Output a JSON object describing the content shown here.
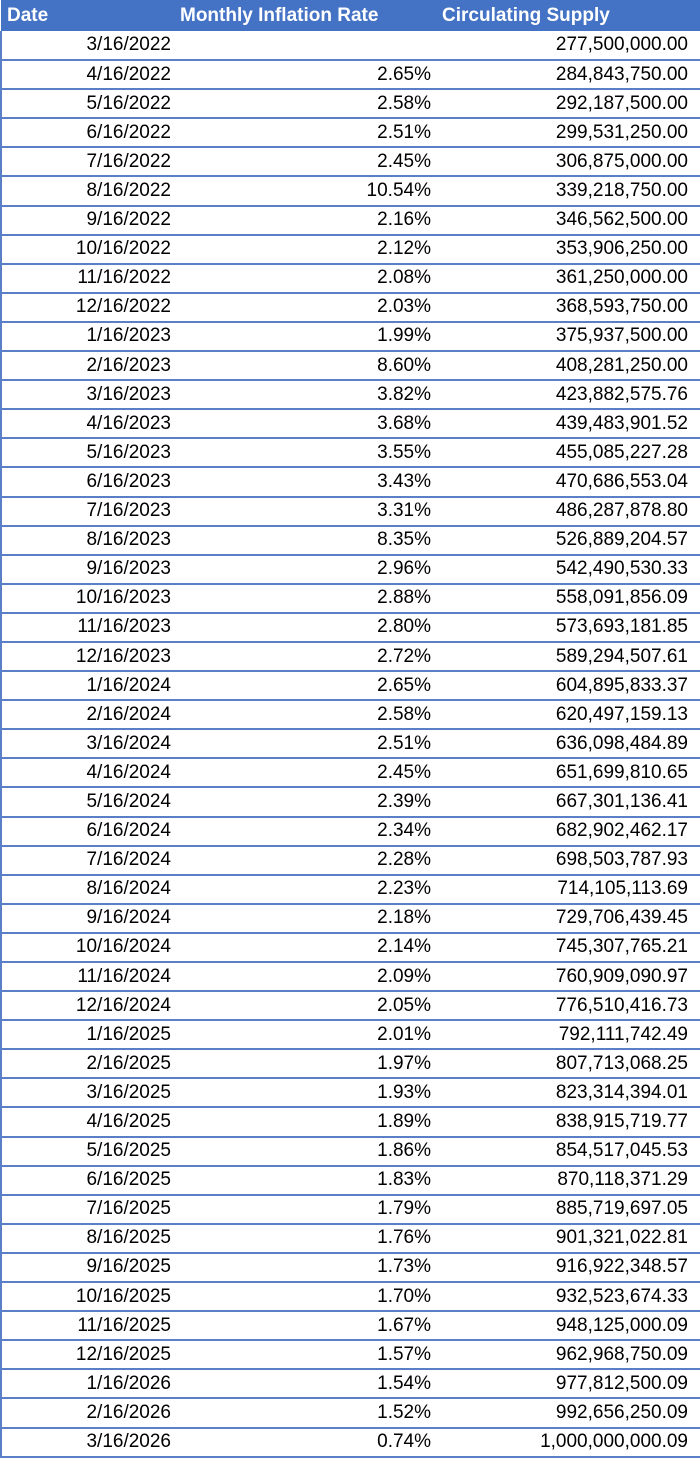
{
  "table": {
    "headers": {
      "date": "Date",
      "rate": "Monthly Inflation Rate",
      "supply": "Circulating Supply"
    },
    "rows": [
      {
        "date": "3/16/2022",
        "rate": "",
        "supply": "277,500,000.00"
      },
      {
        "date": "4/16/2022",
        "rate": "2.65%",
        "supply": "284,843,750.00"
      },
      {
        "date": "5/16/2022",
        "rate": "2.58%",
        "supply": "292,187,500.00"
      },
      {
        "date": "6/16/2022",
        "rate": "2.51%",
        "supply": "299,531,250.00"
      },
      {
        "date": "7/16/2022",
        "rate": "2.45%",
        "supply": "306,875,000.00"
      },
      {
        "date": "8/16/2022",
        "rate": "10.54%",
        "supply": "339,218,750.00"
      },
      {
        "date": "9/16/2022",
        "rate": "2.16%",
        "supply": "346,562,500.00"
      },
      {
        "date": "10/16/2022",
        "rate": "2.12%",
        "supply": "353,906,250.00"
      },
      {
        "date": "11/16/2022",
        "rate": "2.08%",
        "supply": "361,250,000.00"
      },
      {
        "date": "12/16/2022",
        "rate": "2.03%",
        "supply": "368,593,750.00"
      },
      {
        "date": "1/16/2023",
        "rate": "1.99%",
        "supply": "375,937,500.00"
      },
      {
        "date": "2/16/2023",
        "rate": "8.60%",
        "supply": "408,281,250.00"
      },
      {
        "date": "3/16/2023",
        "rate": "3.82%",
        "supply": "423,882,575.76"
      },
      {
        "date": "4/16/2023",
        "rate": "3.68%",
        "supply": "439,483,901.52"
      },
      {
        "date": "5/16/2023",
        "rate": "3.55%",
        "supply": "455,085,227.28"
      },
      {
        "date": "6/16/2023",
        "rate": "3.43%",
        "supply": "470,686,553.04"
      },
      {
        "date": "7/16/2023",
        "rate": "3.31%",
        "supply": "486,287,878.80"
      },
      {
        "date": "8/16/2023",
        "rate": "8.35%",
        "supply": "526,889,204.57"
      },
      {
        "date": "9/16/2023",
        "rate": "2.96%",
        "supply": "542,490,530.33"
      },
      {
        "date": "10/16/2023",
        "rate": "2.88%",
        "supply": "558,091,856.09"
      },
      {
        "date": "11/16/2023",
        "rate": "2.80%",
        "supply": "573,693,181.85"
      },
      {
        "date": "12/16/2023",
        "rate": "2.72%",
        "supply": "589,294,507.61"
      },
      {
        "date": "1/16/2024",
        "rate": "2.65%",
        "supply": "604,895,833.37"
      },
      {
        "date": "2/16/2024",
        "rate": "2.58%",
        "supply": "620,497,159.13"
      },
      {
        "date": "3/16/2024",
        "rate": "2.51%",
        "supply": "636,098,484.89"
      },
      {
        "date": "4/16/2024",
        "rate": "2.45%",
        "supply": "651,699,810.65"
      },
      {
        "date": "5/16/2024",
        "rate": "2.39%",
        "supply": "667,301,136.41"
      },
      {
        "date": "6/16/2024",
        "rate": "2.34%",
        "supply": "682,902,462.17"
      },
      {
        "date": "7/16/2024",
        "rate": "2.28%",
        "supply": "698,503,787.93"
      },
      {
        "date": "8/16/2024",
        "rate": "2.23%",
        "supply": "714,105,113.69"
      },
      {
        "date": "9/16/2024",
        "rate": "2.18%",
        "supply": "729,706,439.45"
      },
      {
        "date": "10/16/2024",
        "rate": "2.14%",
        "supply": "745,307,765.21"
      },
      {
        "date": "11/16/2024",
        "rate": "2.09%",
        "supply": "760,909,090.97"
      },
      {
        "date": "12/16/2024",
        "rate": "2.05%",
        "supply": "776,510,416.73"
      },
      {
        "date": "1/16/2025",
        "rate": "2.01%",
        "supply": "792,111,742.49"
      },
      {
        "date": "2/16/2025",
        "rate": "1.97%",
        "supply": "807,713,068.25"
      },
      {
        "date": "3/16/2025",
        "rate": "1.93%",
        "supply": "823,314,394.01"
      },
      {
        "date": "4/16/2025",
        "rate": "1.89%",
        "supply": "838,915,719.77"
      },
      {
        "date": "5/16/2025",
        "rate": "1.86%",
        "supply": "854,517,045.53"
      },
      {
        "date": "6/16/2025",
        "rate": "1.83%",
        "supply": "870,118,371.29"
      },
      {
        "date": "7/16/2025",
        "rate": "1.79%",
        "supply": "885,719,697.05"
      },
      {
        "date": "8/16/2025",
        "rate": "1.76%",
        "supply": "901,321,022.81"
      },
      {
        "date": "9/16/2025",
        "rate": "1.73%",
        "supply": "916,922,348.57"
      },
      {
        "date": "10/16/2025",
        "rate": "1.70%",
        "supply": "932,523,674.33"
      },
      {
        "date": "11/16/2025",
        "rate": "1.67%",
        "supply": "948,125,000.09"
      },
      {
        "date": "12/16/2025",
        "rate": "1.57%",
        "supply": "962,968,750.09"
      },
      {
        "date": "1/16/2026",
        "rate": "1.54%",
        "supply": "977,812,500.09"
      },
      {
        "date": "2/16/2026",
        "rate": "1.52%",
        "supply": "992,656,250.09"
      },
      {
        "date": "3/16/2026",
        "rate": "0.74%",
        "supply": "1,000,000,000.09"
      }
    ]
  },
  "colors": {
    "header_background": "#4472c4",
    "header_text": "#ffffff",
    "row_border": "#5b7fc6"
  }
}
